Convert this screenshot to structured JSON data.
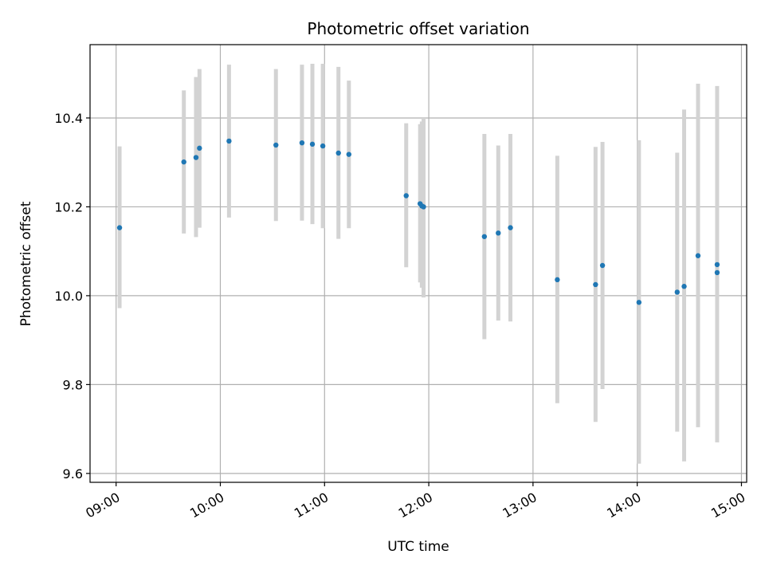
{
  "chart_data": {
    "type": "scatter",
    "title": "Photometric offset variation",
    "xlabel": "UTC time",
    "ylabel": "Photometric offset",
    "x_axis_type": "time",
    "xlim": [
      "08:45",
      "15:03"
    ],
    "ylim": [
      9.58,
      10.565
    ],
    "grid": true,
    "x_ticks": [
      "09:00",
      "10:00",
      "11:00",
      "12:00",
      "13:00",
      "14:00",
      "15:00"
    ],
    "y_ticks": [
      "9.6",
      "9.8",
      "10.0",
      "10.2",
      "10.4"
    ],
    "colors": {
      "point": "#1f77b4",
      "errorbar": "#d3d3d3",
      "grid": "#b0b0b0"
    },
    "points": [
      {
        "x": "09:02",
        "y": 10.153,
        "ylow": 9.972,
        "yhigh": 10.336
      },
      {
        "x": "09:39",
        "y": 10.301,
        "ylow": 10.14,
        "yhigh": 10.462
      },
      {
        "x": "09:46",
        "y": 10.311,
        "ylow": 10.132,
        "yhigh": 10.492
      },
      {
        "x": "09:48",
        "y": 10.332,
        "ylow": 10.153,
        "yhigh": 10.51
      },
      {
        "x": "10:05",
        "y": 10.348,
        "ylow": 10.176,
        "yhigh": 10.52
      },
      {
        "x": "10:32",
        "y": 10.339,
        "ylow": 10.168,
        "yhigh": 10.51
      },
      {
        "x": "10:47",
        "y": 10.344,
        "ylow": 10.169,
        "yhigh": 10.52
      },
      {
        "x": "10:53",
        "y": 10.341,
        "ylow": 10.161,
        "yhigh": 10.522
      },
      {
        "x": "10:59",
        "y": 10.337,
        "ylow": 10.152,
        "yhigh": 10.522
      },
      {
        "x": "11:08",
        "y": 10.321,
        "ylow": 10.128,
        "yhigh": 10.515
      },
      {
        "x": "11:14",
        "y": 10.318,
        "ylow": 10.152,
        "yhigh": 10.484
      },
      {
        "x": "11:47",
        "y": 10.225,
        "ylow": 10.064,
        "yhigh": 10.388
      },
      {
        "x": "11:55",
        "y": 10.207,
        "ylow": 10.03,
        "yhigh": 10.386
      },
      {
        "x": "11:56",
        "y": 10.202,
        "ylow": 10.018,
        "yhigh": 10.392
      },
      {
        "x": "11:57",
        "y": 10.2,
        "ylow": 9.996,
        "yhigh": 10.4
      },
      {
        "x": "12:32",
        "y": 10.133,
        "ylow": 9.902,
        "yhigh": 10.364
      },
      {
        "x": "12:40",
        "y": 10.141,
        "ylow": 9.944,
        "yhigh": 10.338
      },
      {
        "x": "12:47",
        "y": 10.153,
        "ylow": 9.942,
        "yhigh": 10.364
      },
      {
        "x": "13:14",
        "y": 10.036,
        "ylow": 9.758,
        "yhigh": 10.315
      },
      {
        "x": "13:36",
        "y": 10.025,
        "ylow": 9.716,
        "yhigh": 10.335
      },
      {
        "x": "13:40",
        "y": 10.068,
        "ylow": 9.79,
        "yhigh": 10.346
      },
      {
        "x": "14:01",
        "y": 9.985,
        "ylow": 9.622,
        "yhigh": 10.35
      },
      {
        "x": "14:23",
        "y": 10.008,
        "ylow": 9.694,
        "yhigh": 10.322
      },
      {
        "x": "14:27",
        "y": 10.021,
        "ylow": 9.627,
        "yhigh": 10.419
      },
      {
        "x": "14:35",
        "y": 10.09,
        "ylow": 9.704,
        "yhigh": 10.477
      },
      {
        "x": "14:46",
        "y": 10.07,
        "ylow": 9.67,
        "yhigh": 10.472
      },
      {
        "x": "14:46",
        "y": 10.052,
        "ylow": 10.052,
        "yhigh": 10.052
      }
    ]
  }
}
